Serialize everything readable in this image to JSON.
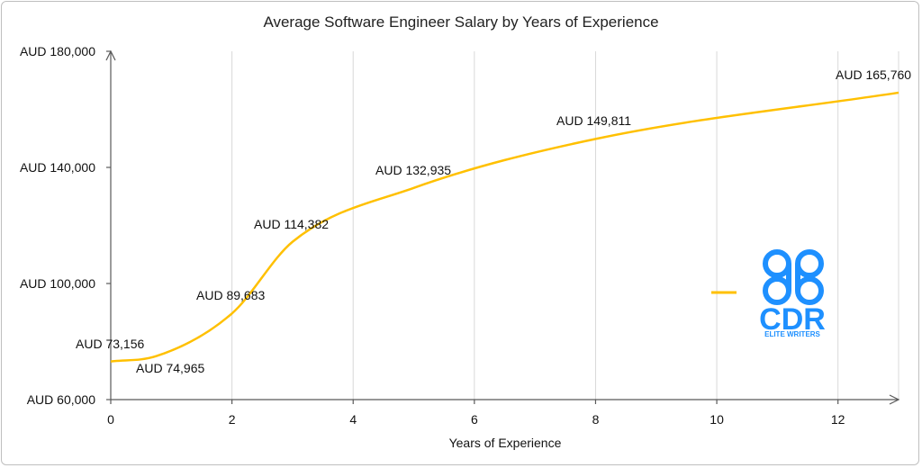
{
  "chart_data": {
    "type": "line",
    "title": "Average Software Engineer Salary by Years of Experience",
    "xlabel": "Years of Experience",
    "ylabel": "",
    "xlim": [
      0,
      13
    ],
    "ylim": [
      60000,
      180000
    ],
    "x_ticks": [
      0,
      2,
      4,
      6,
      8,
      10,
      12
    ],
    "y_ticks": [
      60000,
      100000,
      140000,
      180000
    ],
    "y_tick_labels": [
      "AUD 60,000",
      "AUD 100,000",
      "AUD 140,000",
      "AUD 180,000"
    ],
    "grid": "vertical",
    "smooth": true,
    "series": [
      {
        "color": "#FFC000",
        "x": [
          0,
          0.75,
          2,
          3,
          5,
          8,
          13
        ],
        "values": [
          73156,
          74965,
          89683,
          114382,
          132935,
          149811,
          165760
        ],
        "labels": [
          "AUD 73,156",
          "AUD 74,965",
          "AUD 89,683",
          "AUD 114,382",
          "AUD 132,935",
          "AUD 149,811",
          "AUD 165,760"
        ]
      }
    ],
    "legend": "right"
  },
  "logo": {
    "text": "CDR",
    "subtext": "ELITE WRITERS",
    "color": "#1E90FF"
  }
}
